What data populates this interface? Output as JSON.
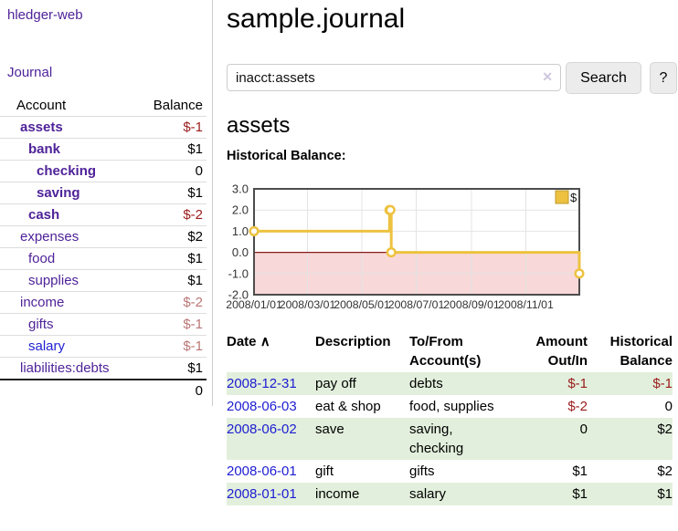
{
  "sidebar": {
    "app_title": "hledger-web",
    "journal_label": "Journal",
    "accounts_table": {
      "account_header": "Account",
      "balance_header": "Balance",
      "rows": [
        {
          "name": "assets",
          "balance": "$-1",
          "depth": 1
        },
        {
          "name": "bank",
          "balance": "$1",
          "depth": 2
        },
        {
          "name": "checking",
          "balance": "0",
          "depth": 3
        },
        {
          "name": "saving",
          "balance": "$1",
          "depth": 3
        },
        {
          "name": "cash",
          "balance": "$-2",
          "depth": 2
        },
        {
          "name": "expenses",
          "balance": "$2",
          "depth": 1
        },
        {
          "name": "food",
          "balance": "$1",
          "depth": 2
        },
        {
          "name": "supplies",
          "balance": "$1",
          "depth": 2
        },
        {
          "name": "income",
          "balance": "$-2",
          "depth": 1
        },
        {
          "name": "gifts",
          "balance": "$-1",
          "depth": 2
        },
        {
          "name": "salary",
          "balance": "$-1",
          "depth": 2
        },
        {
          "name": "liabilities:debts",
          "balance": "$1",
          "depth": 1
        }
      ],
      "total": "0"
    }
  },
  "main": {
    "title": "sample.journal",
    "search": {
      "value": "inacct:assets",
      "clear_icon": "✕",
      "button_label": "Search",
      "help_label": "?"
    },
    "account_heading": "assets",
    "chart_heading": "Historical Balance:"
  },
  "chart_data": {
    "type": "line",
    "step": true,
    "title": "Historical Balance",
    "series": [
      {
        "name": "$",
        "color": "#edc240",
        "points": [
          [
            "2008-01-01",
            1
          ],
          [
            "2008-06-01",
            2
          ],
          [
            "2008-06-02",
            2
          ],
          [
            "2008-06-03",
            0
          ],
          [
            "2008-12-31",
            -1
          ]
        ]
      }
    ],
    "x_range": [
      "2008-01-01",
      "2008-12-31"
    ],
    "ylim": [
      -2,
      3
    ],
    "y_ticks": [
      3.0,
      2.0,
      1.0,
      0.0,
      -1.0,
      -2.0
    ],
    "x_ticks": [
      "2008/01/01",
      "2008/03/01",
      "2008/05/01",
      "2008/07/01",
      "2008/09/01",
      "2008/11/01"
    ],
    "grid": true,
    "legend": {
      "label": "$",
      "position": "top-right"
    },
    "negative_region_fill": "#f8d8d8",
    "zero_line_color": "#8b1a1a"
  },
  "register": {
    "headers": {
      "date": "Date",
      "sort_icon": "∧",
      "description": "Description",
      "accounts": "To/From Account(s)",
      "amount": "Amount Out/In",
      "balance": "Historical Balance"
    },
    "rows": [
      {
        "date": "2008-12-31",
        "description": "pay off",
        "accounts": "debts",
        "amount": "$-1",
        "balance": "$-1"
      },
      {
        "date": "2008-06-03",
        "description": "eat & shop",
        "accounts": "food, supplies",
        "amount": "$-2",
        "balance": "0"
      },
      {
        "date": "2008-06-02",
        "description": "save",
        "accounts": "saving, checking",
        "amount": "0",
        "balance": "$2"
      },
      {
        "date": "2008-06-01",
        "description": "gift",
        "accounts": "gifts",
        "amount": "$1",
        "balance": "$2"
      },
      {
        "date": "2008-01-01",
        "description": "income",
        "accounts": "salary",
        "amount": "$1",
        "balance": "$1"
      }
    ]
  },
  "colors": {
    "link_purple": "#4f2399",
    "link_blue": "#1d1dd2",
    "negative_strong": "#9b1c1c",
    "negative_soft": "#bb7676",
    "row_stripe_green": "#e2efdc",
    "chart_series_gold": "#edc240",
    "chart_negative_fill": "#f8d8d8",
    "chart_zero_line": "#8b1a1a"
  }
}
